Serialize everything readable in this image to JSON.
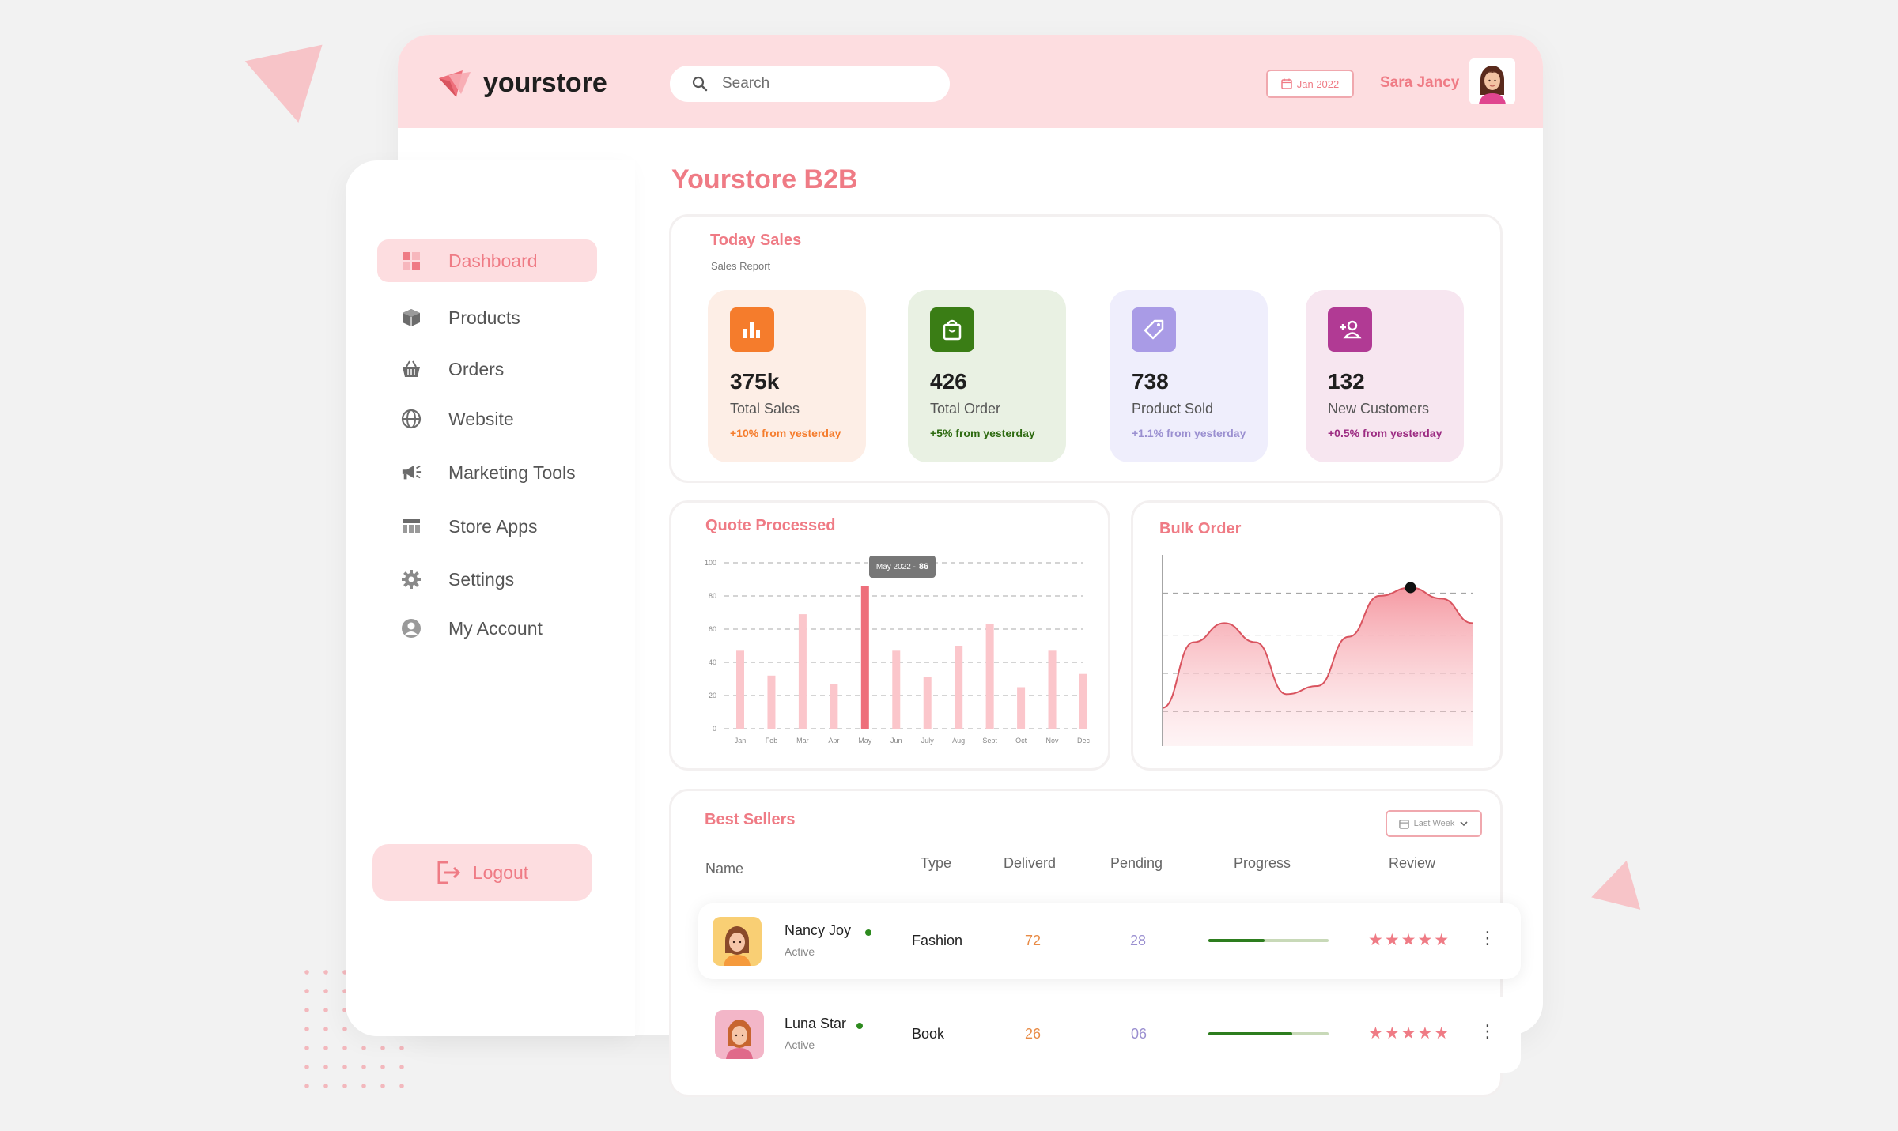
{
  "app": {
    "name": "yourstore"
  },
  "header": {
    "search_placeholder": "Search",
    "date": "Jan 2022",
    "user_name": "Sara Jancy"
  },
  "sidebar": {
    "items": [
      {
        "label": "Dashboard",
        "icon": "dashboard-icon",
        "active": true
      },
      {
        "label": "Products",
        "icon": "box-icon"
      },
      {
        "label": "Orders",
        "icon": "basket-icon"
      },
      {
        "label": "Website",
        "icon": "globe-icon"
      },
      {
        "label": "Marketing Tools",
        "icon": "megaphone-icon"
      },
      {
        "label": "Store Apps",
        "icon": "table-icon"
      },
      {
        "label": "Settings",
        "icon": "gear-icon"
      },
      {
        "label": "My Account",
        "icon": "user-icon"
      }
    ],
    "logout_label": "Logout"
  },
  "page_title": "Yourstore B2B",
  "today_sales": {
    "title": "Today Sales",
    "subtitle": "Sales Report",
    "stats": [
      {
        "value": "375k",
        "label": "Total Sales",
        "delta": "+10% from yesterday",
        "bg": "#fdeee6",
        "icon_bg": "#f57c2c",
        "delta_color": "#f57c2c",
        "icon": "bar-chart-icon"
      },
      {
        "value": "426",
        "label": "Total Order",
        "delta": "+5% from yesterday",
        "bg": "#e9f1e3",
        "icon_bg": "#3a7d15",
        "delta_color": "#2d6a10",
        "icon": "shopping-bag-icon"
      },
      {
        "value": "738",
        "label": "Product Sold",
        "delta": "+1.1% from yesterday",
        "bg": "#efeefc",
        "icon_bg": "#a99be6",
        "delta_color": "#9a8fd0",
        "icon": "tag-icon"
      },
      {
        "value": "132",
        "label": "New Customers",
        "delta": "+0.5% from yesterday",
        "bg": "#f7e6f0",
        "icon_bg": "#b13a94",
        "delta_color": "#9c2b82",
        "icon": "add-user-icon"
      }
    ]
  },
  "quote_processed": {
    "title": "Quote Processed",
    "tooltip": {
      "label": "May 2022 -",
      "value": "86"
    }
  },
  "bulk_order": {
    "title": "Bulk Order"
  },
  "chart_data": [
    {
      "type": "bar",
      "title": "Quote Processed",
      "categories": [
        "Jan",
        "Feb",
        "Mar",
        "Apr",
        "May",
        "Jun",
        "July",
        "Aug",
        "Sept",
        "Oct",
        "Nov",
        "Dec"
      ],
      "values": [
        47,
        32,
        69,
        27,
        86,
        47,
        31,
        50,
        63,
        25,
        47,
        33
      ],
      "highlight_index": 4,
      "yticks": [
        "100",
        "80",
        "60",
        "40",
        "20",
        "0"
      ],
      "ylim": [
        0,
        100
      ],
      "colors": {
        "bar": "#fbc6cb",
        "highlight": "#ee6f7b"
      }
    },
    {
      "type": "area",
      "title": "Bulk Order",
      "x": [
        0,
        1,
        2,
        3,
        4,
        5,
        6,
        7,
        8,
        9,
        10
      ],
      "values": [
        14,
        38,
        45,
        38,
        19,
        22,
        40,
        55,
        58,
        54,
        45
      ],
      "ylim": [
        0,
        70
      ],
      "marker_index": 8,
      "colors": {
        "fill_top": "#f59aa3",
        "fill_bottom": "#fde3e6",
        "line": "#d9545f"
      }
    }
  ],
  "best_sellers": {
    "title": "Best Sellers",
    "filter": "Last Week",
    "columns": {
      "name": "Name",
      "type": "Type",
      "delivered": "Deliverd",
      "pending": "Pending",
      "progress": "Progress",
      "review": "Review"
    },
    "rows": [
      {
        "name": "Nancy Joy",
        "status": "Active",
        "type": "Fashion",
        "delivered": "72",
        "pending": "28",
        "progress": 0.47,
        "stars": "★★★★★",
        "avatar_bg": "#f9cf74"
      },
      {
        "name": "Luna Star",
        "status": "Active",
        "type": "Book",
        "delivered": "26",
        "pending": "06",
        "progress": 0.7,
        "stars": "★★★★★",
        "avatar_bg": "#f3b6c8"
      }
    ]
  }
}
